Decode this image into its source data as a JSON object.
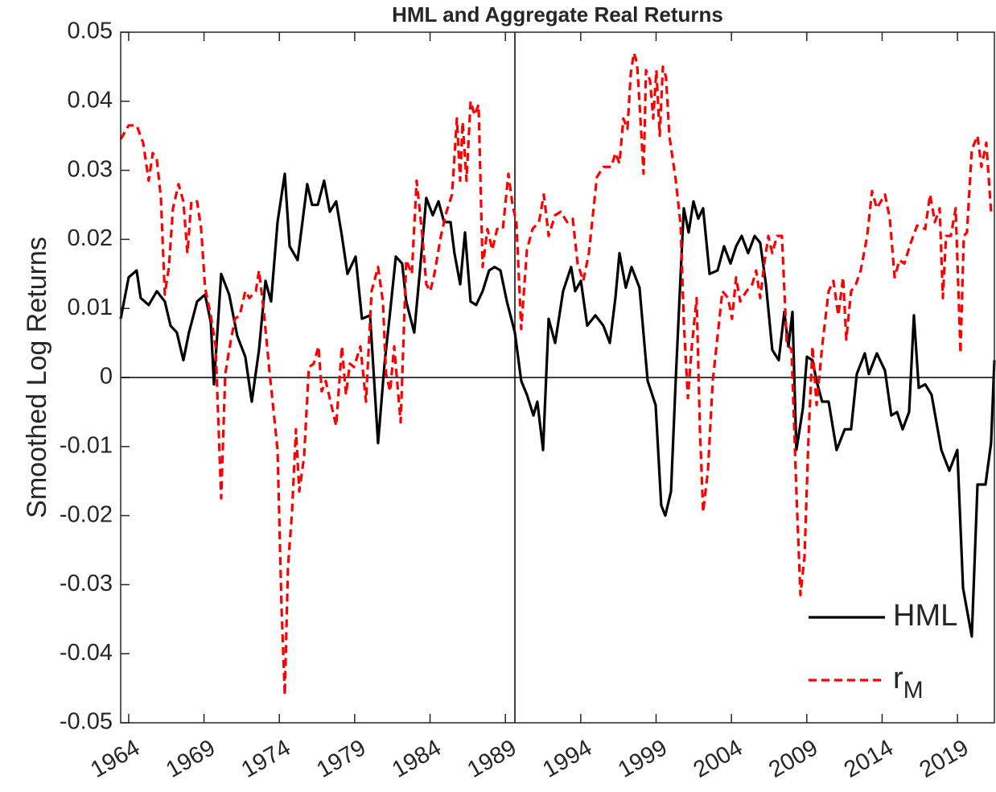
{
  "chart_data": {
    "type": "line",
    "title": "HML and Aggregate Real Returns",
    "y_label": "Smoothed Log Returns",
    "xlim": [
      1963.47,
      2021.45
    ],
    "ylim": [
      -0.05,
      0.05
    ],
    "xticks": [
      1964,
      1969,
      1974,
      1979,
      1984,
      1989,
      1994,
      1999,
      2004,
      2009,
      2014,
      2019
    ],
    "yticks": [
      -0.05,
      -0.04,
      -0.03,
      -0.02,
      -0.01,
      0,
      0.01,
      0.02,
      0.03,
      0.04,
      0.05
    ],
    "reference_lines": {
      "x": 1989.63,
      "y": 0
    },
    "legend": "lower right",
    "series": [
      {
        "name": "HML",
        "color": "#000000",
        "dash": "solid",
        "x": [
          1963.47,
          1964,
          1964.53,
          1964.8,
          1965.33,
          1965.87,
          1966.4,
          1966.78,
          1967.2,
          1967.63,
          1968,
          1968.54,
          1969.07,
          1969.45,
          1969.66,
          1970.14,
          1970.67,
          1971.21,
          1971.74,
          1972.17,
          1972.65,
          1973.08,
          1973.45,
          1973.88,
          1974.36,
          1974.68,
          1975.21,
          1975.85,
          1976.17,
          1976.55,
          1976.97,
          1977.35,
          1977.77,
          1978.15,
          1978.52,
          1979.06,
          1979.48,
          1980.02,
          1980.55,
          1980.98,
          1981.35,
          1981.73,
          1982.15,
          1982.42,
          1982.95,
          1983.33,
          1983.75,
          1984.18,
          1984.56,
          1984.93,
          1985.36,
          1985.62,
          1986,
          1986.32,
          1986.69,
          1987.06,
          1987.49,
          1987.92,
          1988.29,
          1988.67,
          1989.1,
          1989.63,
          1990.05,
          1990.43,
          1990.86,
          1991.12,
          1991.5,
          1991.87,
          1992.3,
          1992.83,
          1993.36,
          1993.63,
          1994.01,
          1994.43,
          1994.97,
          1995.5,
          1995.93,
          1996.3,
          1996.57,
          1996.99,
          1997.37,
          1997.9,
          1998.44,
          1998.97,
          1999.34,
          1999.61,
          1999.99,
          2000.31,
          2000.63,
          2000.84,
          2001.16,
          2001.48,
          2001.8,
          2002.12,
          2002.55,
          2003.08,
          2003.51,
          2003.94,
          2004.31,
          2004.68,
          2005.11,
          2005.54,
          2005.91,
          2006.29,
          2006.71,
          2007.14,
          2007.51,
          2007.78,
          2008.05,
          2008.31,
          2008.74,
          2009.01,
          2009.38,
          2009.65,
          2010.02,
          2010.45,
          2010.98,
          2011.52,
          2011.94,
          2012.32,
          2012.85,
          2013.12,
          2013.65,
          2014.19,
          2014.61,
          2014.99,
          2015.36,
          2015.79,
          2016.11,
          2016.43,
          2016.86,
          2017.28,
          2017.93,
          2018.46,
          2018.99,
          2019.37,
          2019.95,
          2020.33,
          2020.86,
          2021.23,
          2021.45
        ],
        "values": [
          0.0085,
          0.0145,
          0.0155,
          0.0115,
          0.0105,
          0.0125,
          0.011,
          0.0075,
          0.0065,
          0.0025,
          0.0065,
          0.011,
          0.012,
          0.008,
          -0.001,
          0.015,
          0.012,
          0.006,
          0.003,
          -0.0035,
          0.004,
          0.014,
          0.011,
          0.0225,
          0.0295,
          0.019,
          0.017,
          0.028,
          0.025,
          0.025,
          0.0285,
          0.024,
          0.0255,
          0.0205,
          0.015,
          0.0175,
          0.0085,
          0.009,
          -0.0095,
          0.002,
          0.0095,
          0.0175,
          0.0165,
          0.011,
          0.0065,
          0.0155,
          0.026,
          0.0235,
          0.0255,
          0.0225,
          0.0225,
          0.018,
          0.0135,
          0.021,
          0.011,
          0.0105,
          0.0125,
          0.0155,
          0.016,
          0.0155,
          0.011,
          0.0065,
          -0.0005,
          -0.0025,
          -0.0055,
          -0.0035,
          -0.0105,
          0.0085,
          0.005,
          0.0125,
          0.016,
          0.0125,
          0.014,
          0.0075,
          0.009,
          0.0075,
          0.005,
          0.0115,
          0.018,
          0.013,
          0.016,
          0.013,
          -0.0005,
          -0.004,
          -0.0185,
          -0.02,
          -0.0165,
          0,
          0.015,
          0.0245,
          0.021,
          0.0255,
          0.023,
          0.0245,
          0.015,
          0.0155,
          0.019,
          0.0165,
          0.019,
          0.0205,
          0.018,
          0.0205,
          0.0195,
          0.0135,
          0.004,
          0.0025,
          0.0095,
          0.0045,
          0.0095,
          -0.0105,
          -0.0045,
          0.003,
          0.0025,
          -0.0005,
          -0.0035,
          -0.0035,
          -0.0105,
          -0.0075,
          -0.0075,
          0.0005,
          0.0035,
          0.0005,
          0.0035,
          0.001,
          -0.0055,
          -0.005,
          -0.0075,
          -0.005,
          0.009,
          -0.0015,
          -0.001,
          -0.0025,
          -0.0105,
          -0.0135,
          -0.0105,
          -0.0305,
          -0.0375,
          -0.0155,
          -0.0155,
          -0.0095,
          0.0025
        ]
      },
      {
        "name": "rM",
        "color": "#ff0000",
        "dash": "dashed",
        "x": [
          1963.47,
          1964,
          1964.53,
          1964.96,
          1965.33,
          1965.6,
          1965.87,
          1966.14,
          1966.4,
          1966.67,
          1966.94,
          1967.31,
          1967.63,
          1967.9,
          1968.16,
          1968.54,
          1968.81,
          1969.07,
          1969.45,
          1969.77,
          1970.14,
          1970.41,
          1970.67,
          1971.05,
          1971.37,
          1971.74,
          1972.01,
          1972.44,
          1972.65,
          1972.97,
          1973.34,
          1973.88,
          1974.14,
          1974.36,
          1974.57,
          1974.84,
          1975.1,
          1975.32,
          1975.64,
          1975.96,
          1976.28,
          1976.6,
          1976.81,
          1977.08,
          1977.45,
          1977.77,
          1978.15,
          1978.42,
          1978.68,
          1978.95,
          1979.38,
          1979.75,
          1980.12,
          1980.55,
          1980.87,
          1981.08,
          1981.35,
          1981.62,
          1982.05,
          1982.42,
          1982.79,
          1983.11,
          1983.49,
          1983.75,
          1984.02,
          1984.29,
          1984.72,
          1985.09,
          1985.46,
          1985.78,
          1986,
          1986.16,
          1986.42,
          1986.69,
          1986.96,
          1987.22,
          1987.49,
          1987.81,
          1988.13,
          1988.45,
          1988.83,
          1989.2,
          1989.47,
          1989.73,
          1990.05,
          1990.43,
          1990.8,
          1991.23,
          1991.55,
          1991.87,
          1992.3,
          1992.67,
          1993.1,
          1993.47,
          1993.79,
          1994.17,
          1994.54,
          1995.07,
          1995.5,
          1996.03,
          1996.3,
          1996.57,
          1996.83,
          1997.1,
          1997.32,
          1997.53,
          1997.74,
          1997.96,
          1998.17,
          1998.33,
          1998.6,
          1998.81,
          1999.02,
          1999.24,
          1999.45,
          1999.66,
          1999.88,
          2000.31,
          2000.63,
          2000.84,
          2001.11,
          2001.37,
          2001.69,
          2001.91,
          2002.12,
          2002.44,
          2002.76,
          2003.08,
          2003.4,
          2003.78,
          2004.04,
          2004.31,
          2004.58,
          2005,
          2005.38,
          2005.64,
          2005.91,
          2006.18,
          2006.45,
          2006.71,
          2007.03,
          2007.35,
          2007.67,
          2007.99,
          2008.31,
          2008.58,
          2008.85,
          2009.11,
          2009.38,
          2009.65,
          2010.02,
          2010.45,
          2010.77,
          2011.09,
          2011.41,
          2011.62,
          2011.94,
          2012.26,
          2012.58,
          2013.01,
          2013.33,
          2013.65,
          2013.92,
          2014.19,
          2014.51,
          2014.83,
          2015.15,
          2015.47,
          2015.9,
          2016.32,
          2016.86,
          2017.18,
          2017.5,
          2017.82,
          2018.03,
          2018.24,
          2018.56,
          2018.88,
          2019.2,
          2019.42,
          2019.63,
          2019.95,
          2020.33,
          2020.59,
          2020.91,
          2021.23
        ],
        "values": [
          0.0345,
          0.0365,
          0.0365,
          0.034,
          0.0285,
          0.0325,
          0.0315,
          0.026,
          0.012,
          0.016,
          0.0245,
          0.028,
          0.0255,
          0.018,
          0.0255,
          0.0255,
          0.0215,
          0.013,
          0.009,
          0.0045,
          -0.0175,
          0.0005,
          0.004,
          0.0085,
          0.009,
          0.0125,
          0.0115,
          0.0125,
          0.0155,
          0.0095,
          0.001,
          -0.0105,
          -0.033,
          -0.046,
          -0.0275,
          -0.0195,
          -0.0075,
          -0.0165,
          -0.0115,
          0.0015,
          0.002,
          0.0045,
          -0.002,
          -0.0005,
          -0.004,
          -0.007,
          0.0045,
          -0.0025,
          0.002,
          0.0015,
          0.0045,
          -0.0035,
          0.0125,
          0.016,
          0.011,
          0.0005,
          -0.002,
          0.0045,
          -0.0065,
          0.017,
          0.015,
          0.0285,
          0.0205,
          0.0135,
          0.0125,
          0.015,
          0.0205,
          0.024,
          0.0265,
          0.0375,
          0.0285,
          0.037,
          0.0285,
          0.04,
          0.038,
          0.0395,
          0.016,
          0.0215,
          0.0185,
          0.0215,
          0.0215,
          0.0295,
          0.025,
          0.0225,
          0.007,
          0.0185,
          0.0215,
          0.0225,
          0.0265,
          0.0205,
          0.0235,
          0.024,
          0.0225,
          0.023,
          0.0165,
          0.014,
          0.018,
          0.029,
          0.0305,
          0.0305,
          0.0325,
          0.031,
          0.0375,
          0.036,
          0.044,
          0.047,
          0.0455,
          0.0375,
          0.0295,
          0.0445,
          0.043,
          0.0375,
          0.0445,
          0.035,
          0.045,
          0.0435,
          0.035,
          0.0285,
          0.022,
          0.008,
          -0.003,
          0.0045,
          0.0115,
          -0.0075,
          -0.0195,
          -0.0135,
          -0.0005,
          0.006,
          0.0125,
          0.0115,
          0.0085,
          0.0145,
          0.011,
          0.0125,
          0.0135,
          0.0155,
          0.0115,
          0.0165,
          0.0205,
          0.018,
          0.0205,
          0.0205,
          0.005,
          0.004,
          -0.0165,
          -0.0315,
          -0.026,
          -0.009,
          0.0045,
          -0.004,
          0.0045,
          0.0125,
          0.014,
          0.009,
          0.0145,
          0.0055,
          0.0125,
          0.0135,
          0.0155,
          0.0205,
          0.027,
          0.0245,
          0.0255,
          0.0265,
          0.023,
          0.0145,
          0.017,
          0.0165,
          0.0195,
          0.022,
          0.0215,
          0.0265,
          0.0225,
          0.0245,
          0.0115,
          0.0205,
          0.0205,
          0.0245,
          0.0035,
          0.0205,
          0.021,
          0.033,
          0.035,
          0.0305,
          0.034,
          0.024
        ]
      }
    ]
  }
}
